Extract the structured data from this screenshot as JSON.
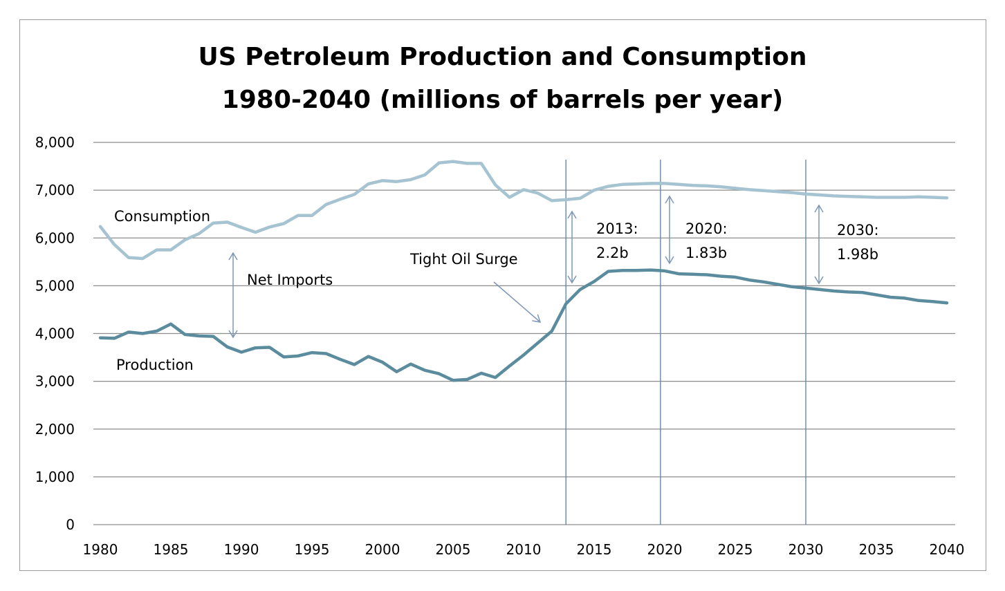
{
  "chart_data": {
    "type": "line",
    "title": "US Petroleum Production and Consumption",
    "subtitle": "1980-2040 (millions of barrels per year)",
    "xlabel": "",
    "ylabel": "",
    "xlim": [
      1980,
      2040
    ],
    "ylim": [
      0,
      8000
    ],
    "yticks": [
      0,
      1000,
      2000,
      3000,
      4000,
      5000,
      6000,
      7000,
      8000
    ],
    "ytick_labels": [
      "0",
      "1,000",
      "2,000",
      "3,000",
      "4,000",
      "5,000",
      "6,000",
      "7,000",
      "8,000"
    ],
    "xticks": [
      1980,
      1985,
      1990,
      1995,
      2000,
      2005,
      2010,
      2015,
      2020,
      2025,
      2030,
      2035,
      2040
    ],
    "xtick_labels": [
      "1980",
      "1985",
      "1990",
      "1995",
      "2000",
      "2005",
      "2010",
      "2015",
      "2020",
      "2025",
      "2030",
      "2035",
      "2040"
    ],
    "grid": true,
    "legend": "none",
    "x": [
      1980,
      1981,
      1982,
      1983,
      1984,
      1985,
      1986,
      1987,
      1988,
      1989,
      1990,
      1991,
      1992,
      1993,
      1994,
      1995,
      1996,
      1997,
      1998,
      1999,
      2000,
      2001,
      2002,
      2003,
      2004,
      2005,
      2006,
      2007,
      2008,
      2009,
      2010,
      2011,
      2012,
      2013,
      2014,
      2015,
      2016,
      2017,
      2018,
      2019,
      2020,
      2021,
      2022,
      2023,
      2024,
      2025,
      2026,
      2027,
      2028,
      2029,
      2030,
      2031,
      2032,
      2033,
      2034,
      2035,
      2036,
      2037,
      2038,
      2039,
      2040
    ],
    "series": [
      {
        "name": "Consumption",
        "color": "#a5c3d0",
        "values": [
          6240,
          5860,
          5590,
          5570,
          5750,
          5750,
          5960,
          6090,
          6310,
          6330,
          6220,
          6120,
          6230,
          6300,
          6470,
          6470,
          6700,
          6810,
          6910,
          7130,
          7200,
          7180,
          7220,
          7320,
          7570,
          7600,
          7560,
          7560,
          7110,
          6850,
          7010,
          6940,
          6780,
          6800,
          6830,
          7000,
          7080,
          7120,
          7130,
          7140,
          7140,
          7120,
          7100,
          7090,
          7070,
          7040,
          7010,
          6990,
          6970,
          6950,
          6920,
          6900,
          6880,
          6870,
          6860,
          6850,
          6850,
          6850,
          6860,
          6850,
          6840
        ]
      },
      {
        "name": "Production",
        "color": "#5b8c9e",
        "values": [
          3910,
          3900,
          4030,
          4000,
          4050,
          4200,
          3980,
          3950,
          3940,
          3720,
          3610,
          3700,
          3710,
          3510,
          3530,
          3600,
          3580,
          3460,
          3350,
          3520,
          3400,
          3200,
          3360,
          3230,
          3160,
          3020,
          3040,
          3170,
          3080,
          3320,
          3550,
          3800,
          4050,
          4620,
          4920,
          5090,
          5300,
          5320,
          5320,
          5330,
          5310,
          5250,
          5240,
          5230,
          5200,
          5180,
          5120,
          5080,
          5030,
          4980,
          4950,
          4920,
          4890,
          4870,
          4860,
          4810,
          4760,
          4740,
          4690,
          4670,
          4640
        ]
      }
    ],
    "vlines": [
      2013,
      2019.7,
      2030
    ],
    "annotations": [
      {
        "id": "consumption",
        "text": "Consumption"
      },
      {
        "id": "production",
        "text": "Production"
      },
      {
        "id": "net-imports",
        "text": "Net Imports"
      },
      {
        "id": "tight-oil",
        "text": "Tight Oil Surge"
      },
      {
        "id": "y2013",
        "line1": "2013:",
        "line2": "2.2b"
      },
      {
        "id": "y2020",
        "line1": "2020:",
        "line2": "1.83b"
      },
      {
        "id": "y2030",
        "line1": "2030:",
        "line2": "1.98b"
      }
    ],
    "gridline_color": "#8c8c8c",
    "vline_color": "#6688a8",
    "arrow_color": "#7d97b4"
  }
}
